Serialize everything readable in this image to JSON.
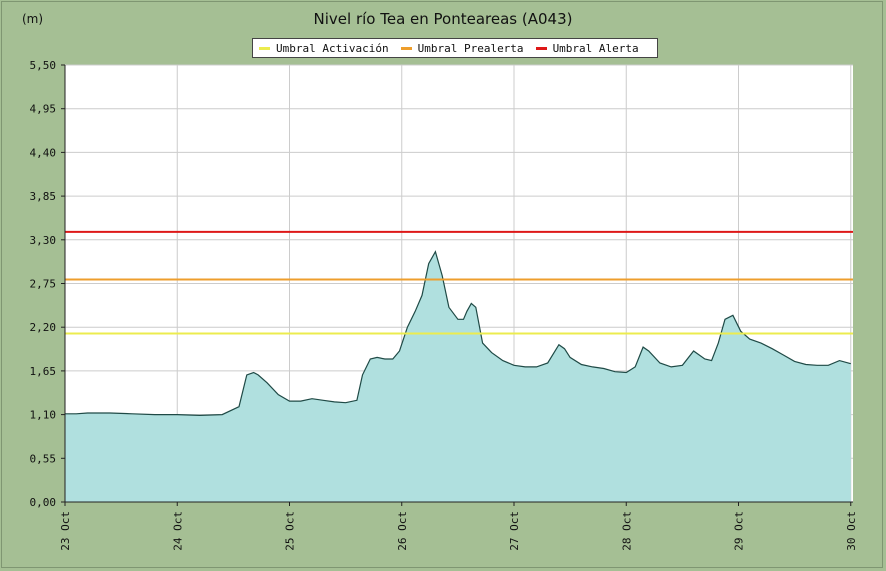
{
  "colors": {
    "background": "#a5bf94",
    "plot_background": "#ffffff",
    "area_fill": "#b0e0df",
    "area_line": "#1f4a46",
    "grid": "#cccccc"
  },
  "chart_data": {
    "type": "area",
    "title": "Nivel río Tea en Ponteareas  (A043)",
    "ylabel": "(m)",
    "xlabel": "",
    "ylim": [
      0,
      5.5
    ],
    "xlim": [
      23,
      30.02
    ],
    "yticks": [
      "0,00",
      "0,55",
      "1,10",
      "1,65",
      "2,20",
      "2,75",
      "3,30",
      "3,85",
      "4,40",
      "4,95",
      "5,50"
    ],
    "yticks_values": [
      0,
      0.55,
      1.1,
      1.65,
      2.2,
      2.75,
      3.3,
      3.85,
      4.4,
      4.95,
      5.5
    ],
    "xticks": [
      "23 Oct",
      "24 Oct",
      "25 Oct",
      "26 Oct",
      "27 Oct",
      "28 Oct",
      "29 Oct",
      "30 Oct"
    ],
    "xticks_values": [
      23,
      24,
      25,
      26,
      27,
      28,
      29,
      30
    ],
    "grid": true,
    "legend": "top-center",
    "thresholds": [
      {
        "name": "Umbral Activación",
        "value": 2.12,
        "color": "#ecec4e"
      },
      {
        "name": "Umbral Prealerta",
        "value": 2.8,
        "color": "#ee9e2c"
      },
      {
        "name": "Umbral Alerta",
        "value": 3.4,
        "color": "#de1818"
      }
    ],
    "series": [
      {
        "name": "Nivel",
        "x": [
          23.0,
          23.1,
          23.2,
          23.4,
          23.6,
          23.8,
          24.0,
          24.2,
          24.4,
          24.55,
          24.62,
          24.68,
          24.72,
          24.8,
          24.9,
          25.0,
          25.1,
          25.2,
          25.3,
          25.4,
          25.5,
          25.6,
          25.65,
          25.72,
          25.78,
          25.85,
          25.92,
          25.98,
          26.05,
          26.12,
          26.18,
          26.24,
          26.3,
          26.36,
          26.42,
          26.5,
          26.55,
          26.58,
          26.62,
          26.66,
          26.72,
          26.8,
          26.9,
          27.0,
          27.1,
          27.2,
          27.3,
          27.4,
          27.45,
          27.5,
          27.6,
          27.7,
          27.8,
          27.9,
          28.0,
          28.08,
          28.15,
          28.2,
          28.3,
          28.4,
          28.5,
          28.6,
          28.7,
          28.76,
          28.82,
          28.88,
          28.95,
          29.02,
          29.1,
          29.2,
          29.3,
          29.4,
          29.5,
          29.6,
          29.7,
          29.8,
          29.9,
          30.0
        ],
        "y": [
          1.11,
          1.11,
          1.12,
          1.12,
          1.11,
          1.1,
          1.1,
          1.09,
          1.1,
          1.2,
          1.6,
          1.63,
          1.6,
          1.5,
          1.35,
          1.27,
          1.27,
          1.3,
          1.28,
          1.26,
          1.25,
          1.28,
          1.6,
          1.8,
          1.82,
          1.8,
          1.8,
          1.9,
          2.2,
          2.4,
          2.6,
          3.0,
          3.15,
          2.85,
          2.45,
          2.3,
          2.3,
          2.4,
          2.5,
          2.45,
          2.0,
          1.88,
          1.78,
          1.72,
          1.7,
          1.7,
          1.75,
          1.98,
          1.93,
          1.82,
          1.73,
          1.7,
          1.68,
          1.64,
          1.63,
          1.7,
          1.95,
          1.9,
          1.75,
          1.7,
          1.72,
          1.9,
          1.8,
          1.78,
          2.0,
          2.3,
          2.35,
          2.15,
          2.05,
          2.0,
          1.93,
          1.85,
          1.77,
          1.73,
          1.72,
          1.72,
          1.78,
          1.74
        ]
      }
    ]
  }
}
